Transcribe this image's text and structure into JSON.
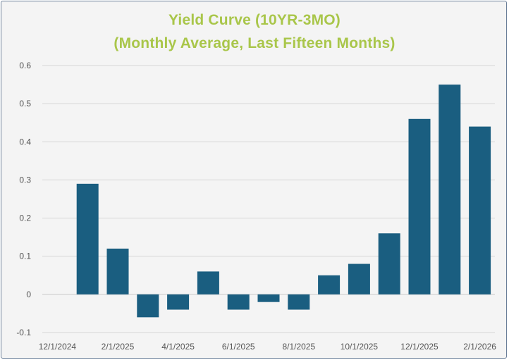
{
  "chart_data": {
    "type": "bar",
    "title": "Yield Curve (10YR-3MO)",
    "subtitle": "(Monthly Average, Last Fifteen Months)",
    "categories": [
      "12/1/2024",
      "1/1/2025",
      "2/1/2025",
      "3/1/2025",
      "4/1/2025",
      "5/1/2025",
      "6/1/2025",
      "7/1/2025",
      "8/1/2025",
      "9/1/2025",
      "10/1/2025",
      "11/1/2025",
      "12/1/2025",
      "1/1/2026",
      "2/1/2026"
    ],
    "x_tick_labels": [
      "12/1/2024",
      "2/1/2025",
      "4/1/2025",
      "6/1/2025",
      "8/1/2025",
      "10/1/2025",
      "12/1/2025",
      "2/1/2026"
    ],
    "values": [
      0,
      0.29,
      0.12,
      -0.06,
      -0.04,
      0.06,
      -0.04,
      -0.02,
      -0.04,
      0.05,
      0.08,
      0.16,
      0.46,
      0.55,
      0.44
    ],
    "y_tick_labels": [
      "0.6",
      "0.5",
      "0.4",
      "0.3",
      "0.2",
      "0.1",
      "0",
      "-0.1"
    ],
    "ylim": [
      -0.1,
      0.6
    ],
    "grid": true,
    "bar_color": "#1a5e80",
    "title_color": "#a9c64a"
  }
}
